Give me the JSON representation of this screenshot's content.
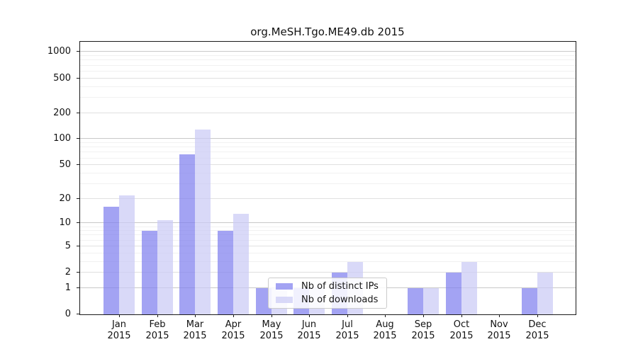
{
  "chart_data": {
    "type": "bar",
    "title": "org.MeSH.Tgo.ME49.db 2015",
    "categories": [
      "Jan",
      "Feb",
      "Mar",
      "Apr",
      "May",
      "Jun",
      "Jul",
      "Aug",
      "Sep",
      "Oct",
      "Nov",
      "Dec"
    ],
    "year_label": "2015",
    "series": [
      {
        "name": "Nb of distinct IPs",
        "color": "rgba(127,127,239,0.72)",
        "values": [
          16,
          8,
          66,
          8,
          1,
          1,
          2,
          0,
          1,
          2,
          0,
          1
        ]
      },
      {
        "name": "Nb of downloads",
        "color": "rgba(203,203,245,0.72)",
        "values": [
          22,
          11,
          130,
          13,
          1,
          1,
          3,
          0,
          1,
          3,
          0,
          2
        ]
      }
    ],
    "yscale": "log10(1+y)",
    "yticks": [
      0,
      1,
      2,
      5,
      10,
      20,
      50,
      100,
      200,
      500,
      1000
    ],
    "ylim": [
      0,
      1310
    ],
    "grid": "on",
    "legend_position": "lower-center-overlay",
    "colors": {
      "decade_gridline": "#c8c8c8",
      "labeled_gridline": "#e0e0e0",
      "minor_gridline": "#f1f1f1",
      "spine": "#1a1a1a"
    }
  }
}
